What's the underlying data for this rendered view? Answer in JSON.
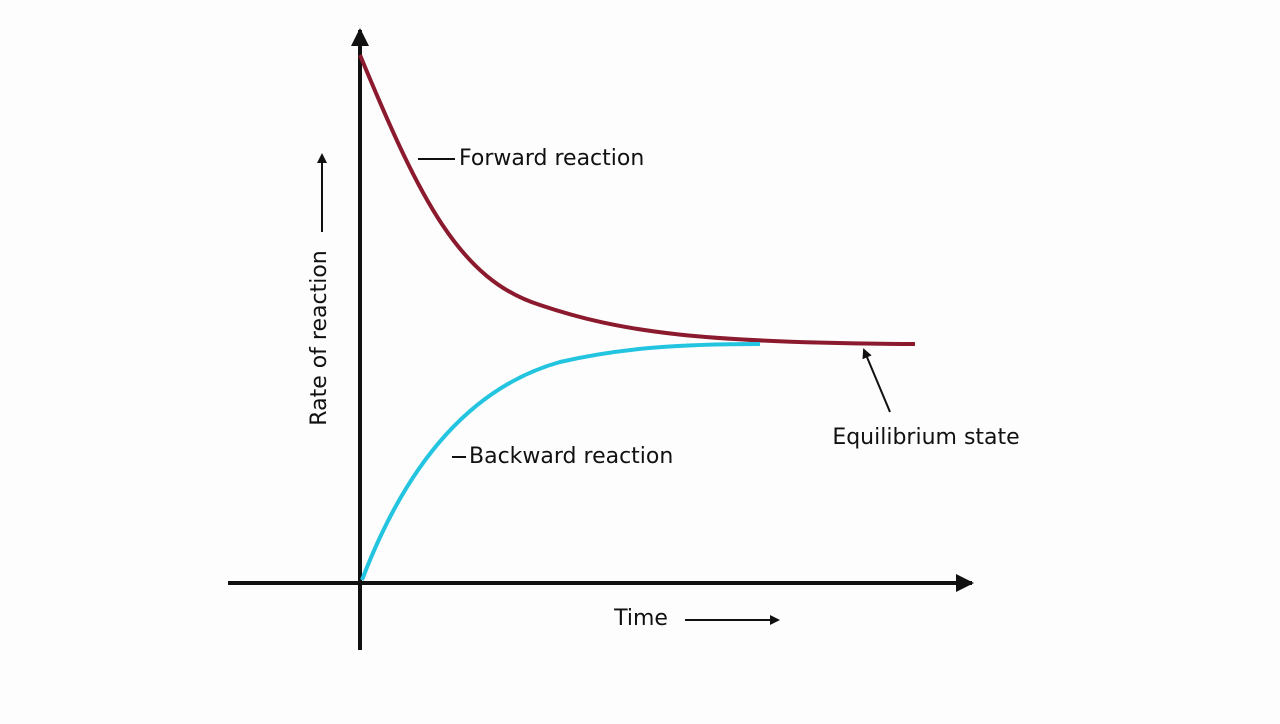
{
  "diagram": {
    "y_axis_label": "Rate of reaction",
    "x_axis_label": "Time",
    "curves": [
      {
        "label": "Forward reaction"
      },
      {
        "label": "Backward reaction"
      }
    ],
    "annotation": "Equilibrium state"
  }
}
